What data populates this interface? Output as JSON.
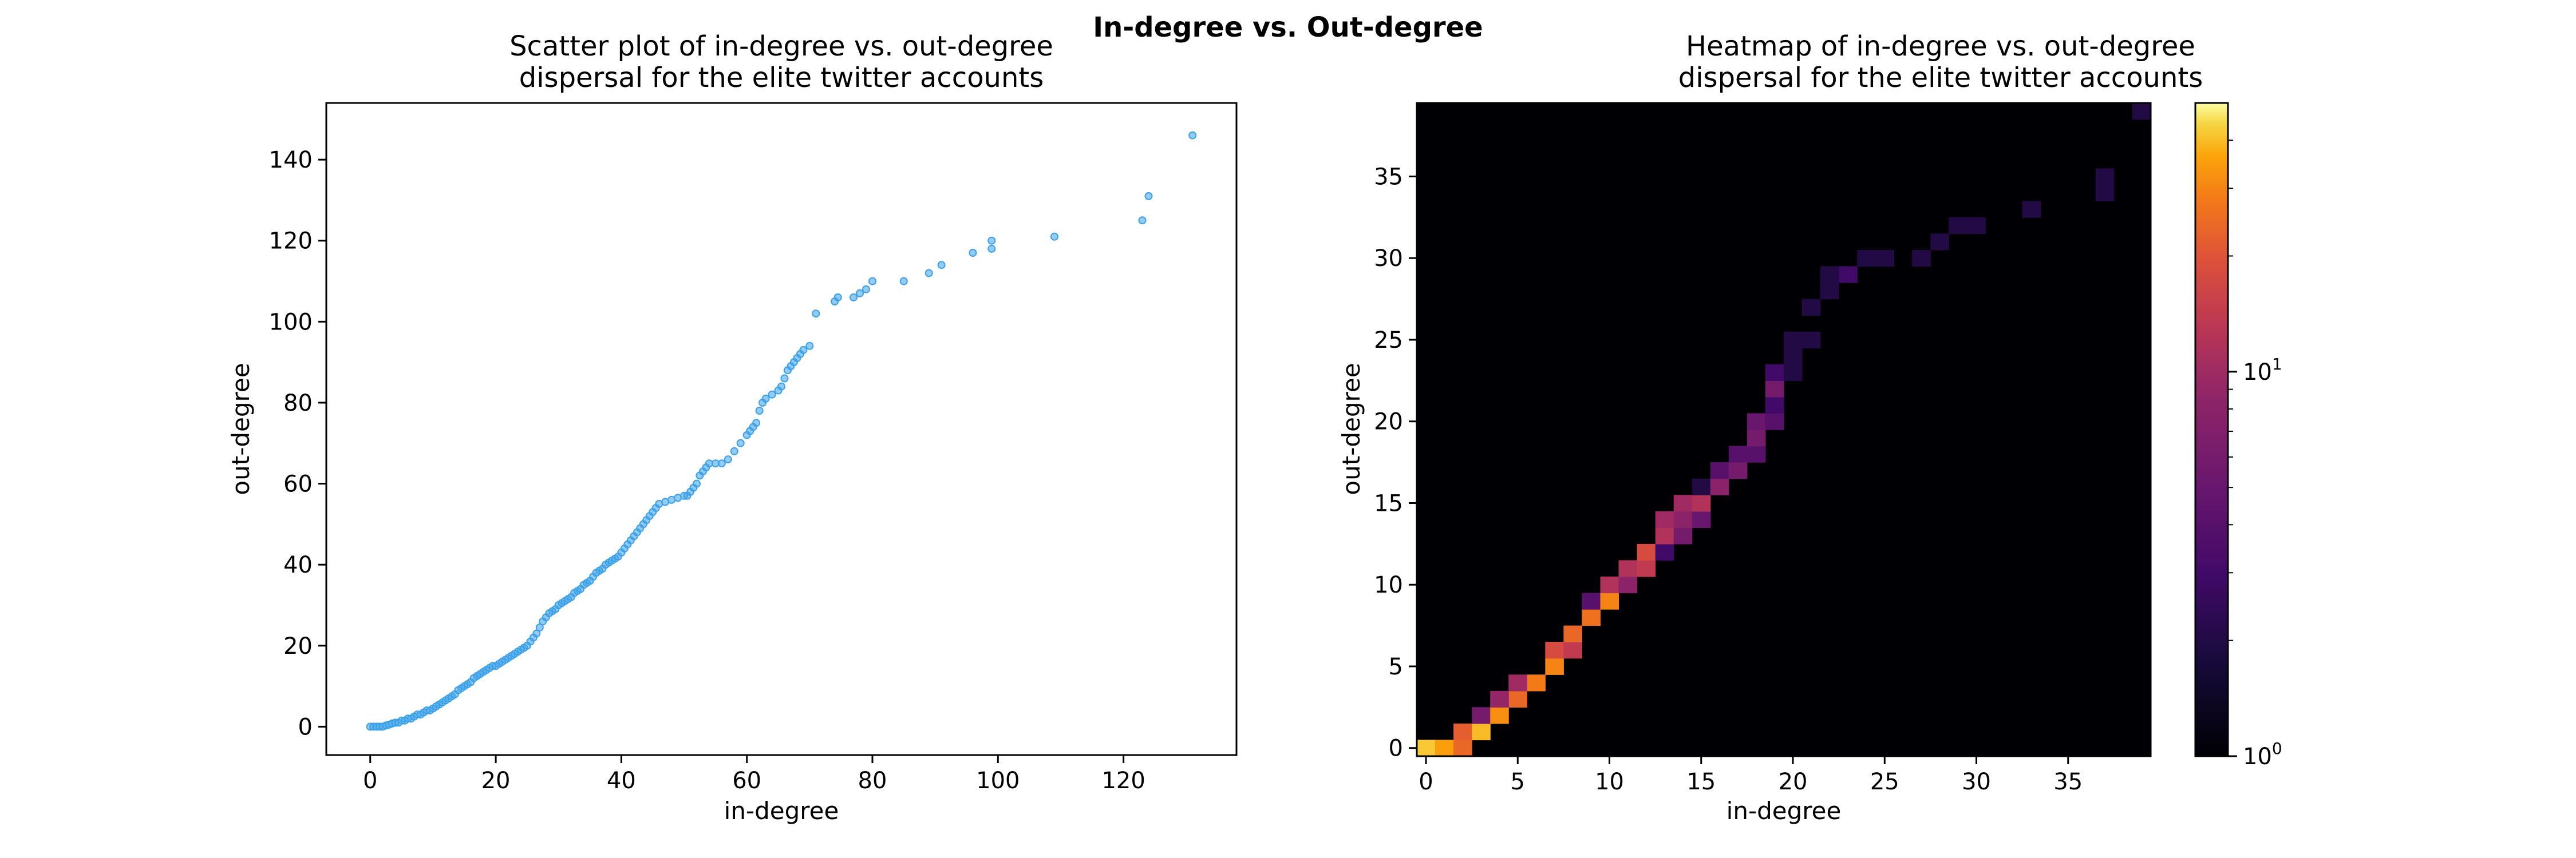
{
  "figure": {
    "suptitle": "In-degree vs. Out-degree"
  },
  "colors": {
    "scatter_point": "#3ba1e8",
    "heatmap_background": "#000004",
    "axis": "#000000"
  },
  "chart_data": [
    {
      "type": "scatter",
      "title_line1": "Scatter plot of in-degree vs. out-degree",
      "title_line2": "dispersal for the elite twitter accounts",
      "xlabel": "in-degree",
      "ylabel": "out-degree",
      "xlim": [
        -7,
        138
      ],
      "ylim": [
        -7,
        154
      ],
      "xticks": [
        0,
        20,
        40,
        60,
        80,
        100,
        120
      ],
      "yticks": [
        0,
        20,
        40,
        60,
        80,
        100,
        120,
        140
      ],
      "grid": false,
      "points": [
        [
          0,
          0
        ],
        [
          0.5,
          0
        ],
        [
          1,
          0
        ],
        [
          1.5,
          0
        ],
        [
          2,
          0
        ],
        [
          2.5,
          0.3
        ],
        [
          3,
          0.5
        ],
        [
          3.5,
          0.8
        ],
        [
          4,
          1
        ],
        [
          4.5,
          1
        ],
        [
          5,
          1.5
        ],
        [
          5.5,
          1.5
        ],
        [
          6,
          2
        ],
        [
          6.5,
          2
        ],
        [
          7,
          2.5
        ],
        [
          7.5,
          3
        ],
        [
          8,
          3
        ],
        [
          8.5,
          3.5
        ],
        [
          9,
          4
        ],
        [
          9.5,
          4
        ],
        [
          10,
          4.5
        ],
        [
          10.5,
          5
        ],
        [
          11,
          5.5
        ],
        [
          11.5,
          6
        ],
        [
          12,
          6.5
        ],
        [
          12.5,
          7
        ],
        [
          13,
          7.5
        ],
        [
          13.5,
          8
        ],
        [
          14,
          9
        ],
        [
          14.5,
          9.5
        ],
        [
          15,
          10
        ],
        [
          15.5,
          10.5
        ],
        [
          16,
          11
        ],
        [
          16.5,
          12
        ],
        [
          17,
          12.5
        ],
        [
          17.5,
          13
        ],
        [
          18,
          13.5
        ],
        [
          18.5,
          14
        ],
        [
          19,
          14.5
        ],
        [
          19.5,
          15
        ],
        [
          20,
          15
        ],
        [
          20.5,
          15.5
        ],
        [
          21,
          16
        ],
        [
          21.5,
          16.5
        ],
        [
          22,
          17
        ],
        [
          22.5,
          17.5
        ],
        [
          23,
          18
        ],
        [
          23.5,
          18.5
        ],
        [
          24,
          19
        ],
        [
          24.5,
          19.5
        ],
        [
          25,
          20
        ],
        [
          25.5,
          21
        ],
        [
          26,
          22
        ],
        [
          26.5,
          23
        ],
        [
          27,
          24.5
        ],
        [
          27.5,
          26
        ],
        [
          28,
          27
        ],
        [
          28.5,
          28
        ],
        [
          29,
          28.5
        ],
        [
          29.5,
          29
        ],
        [
          30,
          30
        ],
        [
          30.5,
          30.5
        ],
        [
          31,
          31
        ],
        [
          31.5,
          31.5
        ],
        [
          32,
          32
        ],
        [
          32.5,
          33
        ],
        [
          33,
          33.5
        ],
        [
          33.5,
          34
        ],
        [
          34,
          35
        ],
        [
          34.5,
          35.5
        ],
        [
          35,
          36
        ],
        [
          35.5,
          37
        ],
        [
          36,
          38
        ],
        [
          36.5,
          38.5
        ],
        [
          37,
          39
        ],
        [
          37.5,
          40
        ],
        [
          38,
          40.5
        ],
        [
          38.5,
          41
        ],
        [
          39,
          41.5
        ],
        [
          39.5,
          42
        ],
        [
          40,
          43
        ],
        [
          40.5,
          44
        ],
        [
          41,
          45
        ],
        [
          41.5,
          46
        ],
        [
          42,
          47
        ],
        [
          42.5,
          48
        ],
        [
          43,
          49
        ],
        [
          43.5,
          50
        ],
        [
          44,
          51
        ],
        [
          44.5,
          52
        ],
        [
          45,
          53
        ],
        [
          45.5,
          54
        ],
        [
          46,
          55
        ],
        [
          47,
          55.5
        ],
        [
          48,
          56
        ],
        [
          49,
          56.5
        ],
        [
          50,
          57
        ],
        [
          50.5,
          57
        ],
        [
          51,
          58
        ],
        [
          51.5,
          59
        ],
        [
          52,
          60
        ],
        [
          52.5,
          62
        ],
        [
          53,
          63
        ],
        [
          53.5,
          64
        ],
        [
          54,
          65
        ],
        [
          55,
          65
        ],
        [
          56,
          65
        ],
        [
          57,
          66
        ],
        [
          58,
          68
        ],
        [
          59,
          70
        ],
        [
          60,
          72
        ],
        [
          60.5,
          73
        ],
        [
          61,
          74
        ],
        [
          61.5,
          75
        ],
        [
          62,
          78
        ],
        [
          62.5,
          80
        ],
        [
          63,
          81
        ],
        [
          64,
          82
        ],
        [
          65,
          83
        ],
        [
          65.5,
          84
        ],
        [
          66,
          86
        ],
        [
          66.5,
          88
        ],
        [
          67,
          89
        ],
        [
          67.5,
          90
        ],
        [
          68,
          91
        ],
        [
          68.5,
          92
        ],
        [
          69,
          93
        ],
        [
          70,
          94
        ],
        [
          71,
          102
        ],
        [
          74,
          105
        ],
        [
          74.5,
          106
        ],
        [
          77,
          106
        ],
        [
          78,
          107
        ],
        [
          79,
          108
        ],
        [
          80,
          110
        ],
        [
          85,
          110
        ],
        [
          89,
          112
        ],
        [
          91,
          114
        ],
        [
          96,
          117
        ],
        [
          99,
          118
        ],
        [
          99,
          120
        ],
        [
          109,
          121
        ],
        [
          123,
          125
        ],
        [
          124,
          131
        ],
        [
          131,
          146
        ]
      ]
    },
    {
      "type": "heatmap",
      "title_line1": "Heatmap of in-degree vs. out-degree",
      "title_line2": "dispersal for the elite twitter accounts",
      "xlabel": "in-degree",
      "ylabel": "out-degree",
      "xlim": [
        -0.5,
        39.5
      ],
      "ylim": [
        -0.5,
        39.5
      ],
      "xticks": [
        0,
        5,
        10,
        15,
        20,
        25,
        30,
        35
      ],
      "yticks": [
        0,
        5,
        10,
        15,
        20,
        25,
        30,
        35
      ],
      "colorbar": {
        "scale": "log",
        "min": 1,
        "max": 50,
        "tick_base": "10",
        "major_ticks": [
          {
            "value": 1,
            "exponent": "0"
          },
          {
            "value": 10,
            "exponent": "1"
          }
        ],
        "minor_ticks": [
          2,
          3,
          4,
          5,
          6,
          7,
          8,
          9,
          20,
          30,
          40
        ]
      },
      "cells": [
        [
          0,
          0,
          42
        ],
        [
          1,
          0,
          35
        ],
        [
          2,
          0,
          24
        ],
        [
          2,
          1,
          22
        ],
        [
          3,
          1,
          40
        ],
        [
          3,
          2,
          6
        ],
        [
          4,
          2,
          32
        ],
        [
          5,
          3,
          24
        ],
        [
          4,
          3,
          9
        ],
        [
          6,
          4,
          28
        ],
        [
          5,
          4,
          10
        ],
        [
          7,
          5,
          30
        ],
        [
          7,
          6,
          18
        ],
        [
          8,
          6,
          14
        ],
        [
          8,
          7,
          24
        ],
        [
          9,
          8,
          26
        ],
        [
          9,
          9,
          4
        ],
        [
          10,
          9,
          30
        ],
        [
          10,
          10,
          12
        ],
        [
          11,
          10,
          8
        ],
        [
          11,
          11,
          12
        ],
        [
          12,
          11,
          14
        ],
        [
          12,
          12,
          18
        ],
        [
          13,
          12,
          3
        ],
        [
          13,
          13,
          12
        ],
        [
          14,
          13,
          6
        ],
        [
          13,
          14,
          10
        ],
        [
          14,
          14,
          8
        ],
        [
          15,
          14,
          5
        ],
        [
          14,
          15,
          10
        ],
        [
          15,
          15,
          12
        ],
        [
          15,
          16,
          2
        ],
        [
          16,
          16,
          8
        ],
        [
          16,
          17,
          4
        ],
        [
          17,
          17,
          6
        ],
        [
          17,
          18,
          4
        ],
        [
          18,
          18,
          4
        ],
        [
          18,
          19,
          6
        ],
        [
          18,
          20,
          5
        ],
        [
          19,
          20,
          4
        ],
        [
          19,
          21,
          3
        ],
        [
          19,
          22,
          6
        ],
        [
          19,
          23,
          3
        ],
        [
          20,
          23,
          2
        ],
        [
          20,
          24,
          2
        ],
        [
          20,
          25,
          2
        ],
        [
          21,
          25,
          2
        ],
        [
          21,
          27,
          2
        ],
        [
          22,
          28,
          2
        ],
        [
          23,
          29,
          3
        ],
        [
          22,
          29,
          2
        ],
        [
          24,
          30,
          2
        ],
        [
          25,
          30,
          2
        ],
        [
          27,
          30,
          2
        ],
        [
          28,
          31,
          2
        ],
        [
          29,
          32,
          2
        ],
        [
          30,
          32,
          2
        ],
        [
          33,
          33,
          2
        ],
        [
          37,
          34,
          2
        ],
        [
          37,
          35,
          2
        ],
        [
          39,
          39,
          2
        ]
      ]
    }
  ]
}
